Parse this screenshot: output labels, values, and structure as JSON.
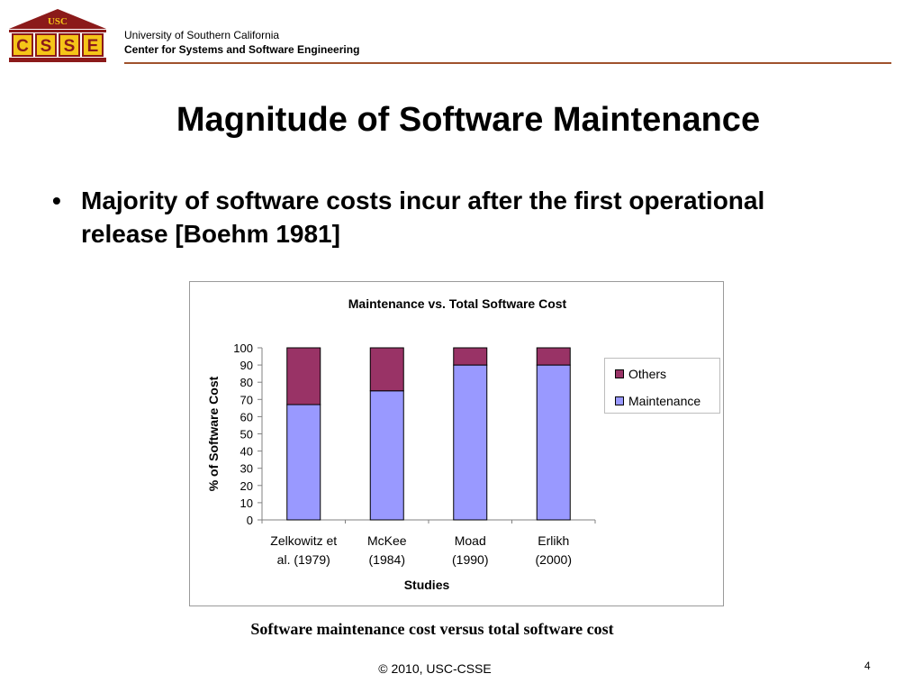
{
  "header": {
    "logo_top": "USC",
    "logo_letters": [
      "C",
      "S",
      "S",
      "E"
    ],
    "university": "University of Southern California",
    "center": "Center for Systems and Software Engineering"
  },
  "slide": {
    "title": "Magnitude of Software Maintenance",
    "bullet_symbol": "•",
    "bullet_text": "Majority of software costs incur after the first operational release [Boehm 1981]",
    "caption": "Software maintenance cost versus total software cost",
    "footer": "© 2010, USC-CSSE",
    "page_number": "4"
  },
  "chart_data": {
    "type": "bar",
    "stacked": true,
    "title": "Maintenance vs. Total Software Cost",
    "xlabel": "Studies",
    "ylabel": "% of Software Cost",
    "ylim": [
      0,
      100
    ],
    "yticks": [
      0,
      10,
      20,
      30,
      40,
      50,
      60,
      70,
      80,
      90,
      100
    ],
    "categories": [
      [
        "Zelkowitz et",
        "al. (1979)"
      ],
      [
        "McKee",
        "(1984)"
      ],
      [
        "Moad",
        "(1990)"
      ],
      [
        "Erlikh",
        "(2000)"
      ]
    ],
    "series": [
      {
        "name": "Maintenance",
        "values": [
          67,
          75,
          90,
          90
        ],
        "color": "#9999ff"
      },
      {
        "name": "Others",
        "values": [
          33,
          25,
          10,
          10
        ],
        "color": "#993366"
      }
    ],
    "legend_order": [
      "Others",
      "Maintenance"
    ],
    "legend_position": "right",
    "grid": false
  }
}
